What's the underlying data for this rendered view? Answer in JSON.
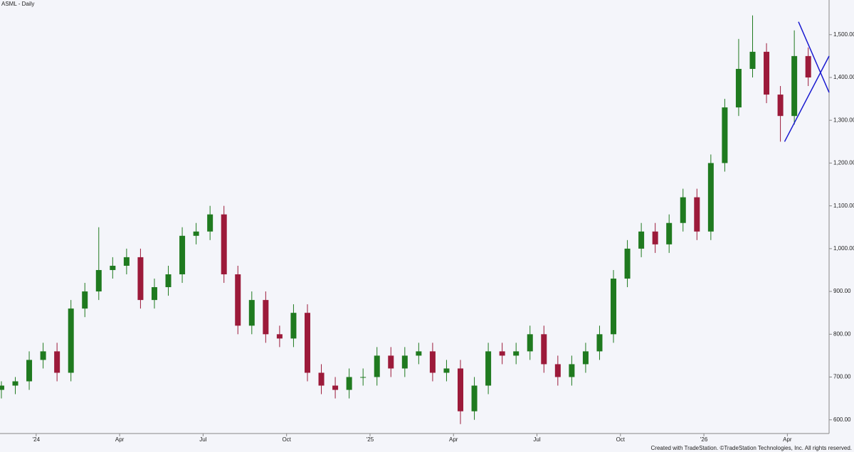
{
  "chart_data": {
    "type": "candlestick",
    "title": "ASML - Daily",
    "footer": "Created with TradeStation. ©TradeStation Technologies, Inc. All rights reserved.",
    "x": [
      -1.25,
      -0.75,
      -0.25,
      0.25,
      0.75,
      1.25,
      1.75,
      2.25,
      2.75,
      3.25,
      3.75,
      4.25,
      4.75,
      5.25,
      5.75,
      6.25,
      6.75,
      7.25,
      7.75,
      8.25,
      8.75,
      9.25,
      9.75,
      10.25,
      10.75,
      11.25,
      11.75,
      12.25,
      12.75,
      13.25,
      13.75,
      14.25,
      14.75,
      15.25,
      15.75,
      16.25,
      16.75,
      17.25,
      17.75,
      18.25,
      18.75,
      19.25,
      19.75,
      20.25,
      20.75,
      21.25,
      21.75,
      22.25,
      22.75,
      23.25,
      23.75,
      24.25,
      24.75,
      25.25,
      25.75,
      26.25,
      26.75,
      27.25,
      27.75
    ],
    "open": [
      670,
      680,
      690,
      740,
      760,
      710,
      860,
      900,
      950,
      960,
      980,
      880,
      910,
      940,
      1030,
      1040,
      1080,
      940,
      820,
      880,
      800,
      790,
      850,
      710,
      680,
      670,
      700,
      700,
      750,
      720,
      750,
      760,
      710,
      720,
      620,
      680,
      760,
      750,
      760,
      800,
      730,
      700,
      730,
      760,
      800,
      930,
      1000,
      1040,
      1010,
      1060,
      1120,
      1040,
      1200,
      1330,
      1420,
      1460,
      1360,
      1310,
      1450
    ],
    "high": [
      690,
      700,
      760,
      780,
      780,
      880,
      920,
      1050,
      980,
      1000,
      1000,
      930,
      960,
      1050,
      1060,
      1100,
      1100,
      960,
      900,
      900,
      820,
      870,
      870,
      730,
      700,
      720,
      720,
      770,
      770,
      770,
      780,
      780,
      740,
      740,
      700,
      780,
      780,
      780,
      820,
      820,
      750,
      750,
      780,
      820,
      950,
      1020,
      1060,
      1060,
      1080,
      1140,
      1140,
      1220,
      1350,
      1490,
      1545,
      1480,
      1380,
      1510,
      1470
    ],
    "low": [
      650,
      660,
      670,
      720,
      690,
      690,
      840,
      880,
      930,
      940,
      860,
      860,
      890,
      920,
      1010,
      1020,
      920,
      800,
      800,
      780,
      770,
      770,
      690,
      660,
      650,
      650,
      680,
      680,
      700,
      700,
      730,
      690,
      690,
      590,
      600,
      660,
      730,
      730,
      740,
      710,
      680,
      680,
      710,
      740,
      780,
      910,
      980,
      990,
      990,
      1040,
      1020,
      1020,
      1180,
      1310,
      1400,
      1340,
      1250,
      1290,
      1380
    ],
    "close": [
      680,
      690,
      740,
      760,
      710,
      860,
      900,
      950,
      960,
      980,
      880,
      910,
      940,
      1030,
      1040,
      1080,
      940,
      820,
      880,
      800,
      790,
      850,
      710,
      680,
      670,
      700,
      700,
      750,
      720,
      750,
      760,
      710,
      720,
      620,
      680,
      760,
      750,
      760,
      800,
      730,
      700,
      730,
      760,
      800,
      930,
      1000,
      1040,
      1010,
      1060,
      1120,
      1040,
      1200,
      1330,
      1420,
      1460,
      1360,
      1310,
      1450,
      1400
    ],
    "up_color": "#1f7a1f",
    "down_color": "#9c1a3a",
    "xlim": [
      -1.3,
      28.5
    ],
    "xticks": [
      {
        "value": 0,
        "label": "'24"
      },
      {
        "value": 3,
        "label": "Apr"
      },
      {
        "value": 6,
        "label": "Jul"
      },
      {
        "value": 9,
        "label": "Oct"
      },
      {
        "value": 12,
        "label": "'25"
      },
      {
        "value": 15,
        "label": "Apr"
      },
      {
        "value": 18,
        "label": "Jul"
      },
      {
        "value": 21,
        "label": "Oct"
      },
      {
        "value": 24,
        "label": "'26"
      },
      {
        "value": 27,
        "label": "Apr"
      }
    ],
    "ylim": [
      568,
      1581
    ],
    "yticks": [
      {
        "value": 600,
        "label": "600.00"
      },
      {
        "value": 700,
        "label": "700.00"
      },
      {
        "value": 800,
        "label": "800.00"
      },
      {
        "value": 900,
        "label": "900.00"
      },
      {
        "value": 1000,
        "label": "1,000.00"
      },
      {
        "value": 1100,
        "label": "1,100.00"
      },
      {
        "value": 1200,
        "label": "1,200.00"
      },
      {
        "value": 1300,
        "label": "1,300.00"
      },
      {
        "value": 1400,
        "label": "1,400.00"
      },
      {
        "value": 1500,
        "label": "1,500.00"
      }
    ],
    "trendline_color": "#1a1ad0",
    "trendlines": [
      {
        "x": [
          26.9,
          28.5
        ],
        "y": [
          1250,
          1450
        ]
      },
      {
        "x": [
          27.4,
          28.5
        ],
        "y": [
          1530,
          1365
        ]
      }
    ]
  }
}
